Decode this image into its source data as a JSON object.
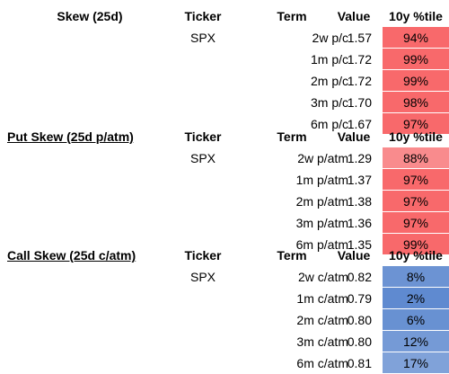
{
  "sections": [
    {
      "title": "Skew (25d)",
      "headers": {
        "ticker": "Ticker",
        "term": "Term",
        "value": "Value",
        "pct": "10y %tile"
      },
      "rows": [
        {
          "ticker": "SPX",
          "term": "2w p/c",
          "value": "1.57",
          "pct": "94%",
          "color": "#f8696b"
        },
        {
          "ticker": "",
          "term": "1m p/c",
          "value": "1.72",
          "pct": "99%",
          "color": "#f8696b"
        },
        {
          "ticker": "",
          "term": "2m p/c",
          "value": "1.72",
          "pct": "99%",
          "color": "#f8696b"
        },
        {
          "ticker": "",
          "term": "3m p/c",
          "value": "1.70",
          "pct": "98%",
          "color": "#f8696b"
        },
        {
          "ticker": "",
          "term": "6m p/c",
          "value": "1.67",
          "pct": "97%",
          "color": "#f8696b"
        }
      ]
    },
    {
      "title": "Put Skew (25d p/atm)",
      "headers": {
        "ticker": "Ticker",
        "term": "Term",
        "value": "Value",
        "pct": "10y %tile"
      },
      "rows": [
        {
          "ticker": "SPX",
          "term": "2w p/atm",
          "value": "1.29",
          "pct": "88%",
          "color": "#f98b8d"
        },
        {
          "ticker": "",
          "term": "1m p/atm",
          "value": "1.37",
          "pct": "97%",
          "color": "#f8696b"
        },
        {
          "ticker": "",
          "term": "2m p/atm",
          "value": "1.38",
          "pct": "97%",
          "color": "#f8696b"
        },
        {
          "ticker": "",
          "term": "3m p/atm",
          "value": "1.36",
          "pct": "97%",
          "color": "#f8696b"
        },
        {
          "ticker": "",
          "term": "6m p/atm",
          "value": "1.35",
          "pct": "99%",
          "color": "#f8696b"
        }
      ]
    },
    {
      "title": "Call Skew (25d c/atm)",
      "headers": {
        "ticker": "Ticker",
        "term": "Term",
        "value": "Value",
        "pct": "10y %tile"
      },
      "rows": [
        {
          "ticker": "SPX",
          "term": "2w c/atm",
          "value": "0.82",
          "pct": "8%",
          "color": "#6c93d3"
        },
        {
          "ticker": "",
          "term": "1m c/atm",
          "value": "0.79",
          "pct": "2%",
          "color": "#5f8ad0"
        },
        {
          "ticker": "",
          "term": "2m c/atm",
          "value": "0.80",
          "pct": "6%",
          "color": "#6891d2"
        },
        {
          "ticker": "",
          "term": "3m c/atm",
          "value": "0.80",
          "pct": "12%",
          "color": "#759ad6"
        },
        {
          "ticker": "",
          "term": "6m c/atm",
          "value": "0.81",
          "pct": "17%",
          "color": "#80a2d9"
        }
      ]
    }
  ]
}
